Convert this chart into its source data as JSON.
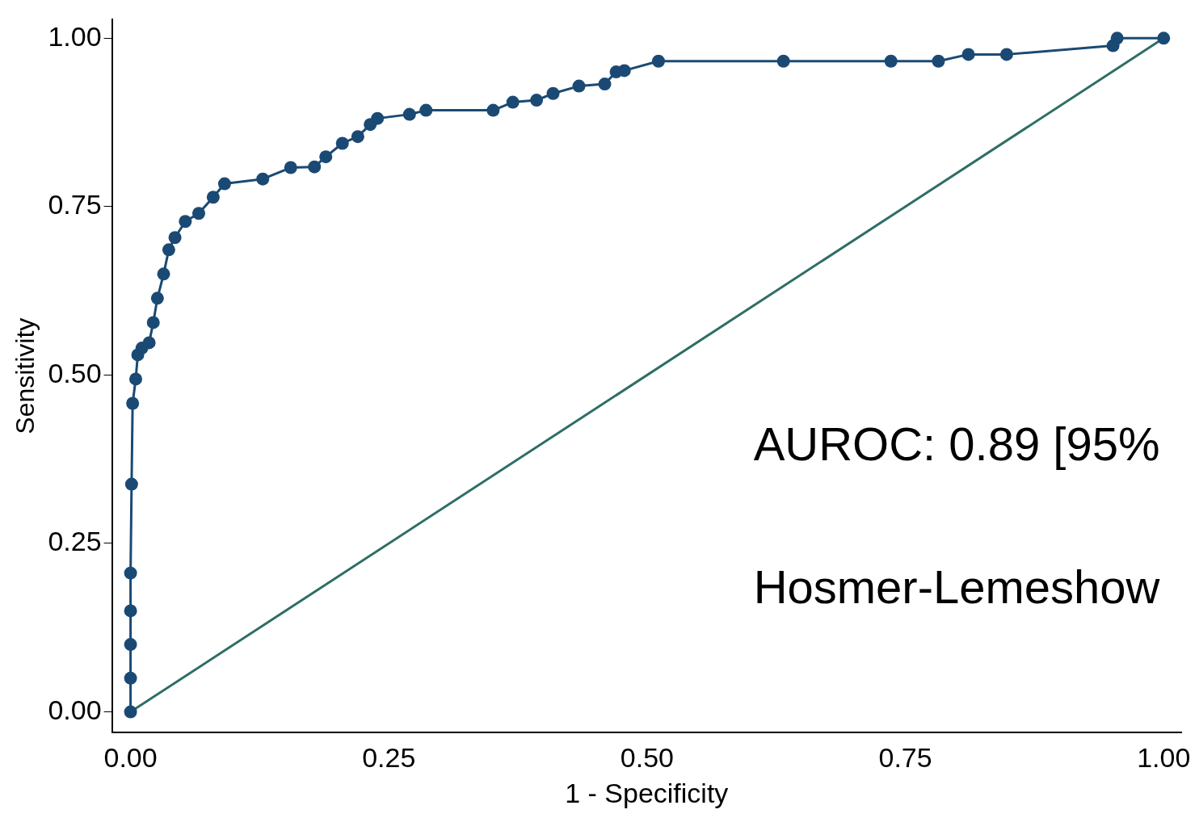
{
  "chart_data": {
    "type": "line",
    "xlabel": "1 - Specificity",
    "ylabel": "Sensitivity",
    "xlim": [
      -0.018,
      1.017
    ],
    "ylim": [
      -0.031,
      1.028
    ],
    "xticks": [
      {
        "value": 0,
        "label": "0.00"
      },
      {
        "value": 0.25,
        "label": "0.25"
      },
      {
        "value": 0.5,
        "label": "0.50"
      },
      {
        "value": 0.75,
        "label": "0.75"
      },
      {
        "value": 1,
        "label": "1.00"
      }
    ],
    "yticks": [
      {
        "value": 0,
        "label": "0.00"
      },
      {
        "value": 0.25,
        "label": "0.25"
      },
      {
        "value": 0.5,
        "label": "0.50"
      },
      {
        "value": 0.75,
        "label": "0.75"
      },
      {
        "value": 1,
        "label": "1.00"
      }
    ],
    "grid": false,
    "legend": false,
    "annotations": [
      "AUROC: 0.89 [95%",
      "Hosmer-Lemeshow"
    ],
    "series": [
      {
        "color": "#1a4a74",
        "marker": "circle",
        "x": [
          0,
          0,
          0,
          0,
          0,
          0.001,
          0.002,
          0.005,
          0.007,
          0.011,
          0.018,
          0.022,
          0.026,
          0.032,
          0.037,
          0.043,
          0.053,
          0.066,
          0.08,
          0.091,
          0.128,
          0.155,
          0.178,
          0.189,
          0.205,
          0.22,
          0.232,
          0.239,
          0.27,
          0.286,
          0.351,
          0.37,
          0.393,
          0.409,
          0.434,
          0.459,
          0.47,
          0.478,
          0.511,
          0.632,
          0.736,
          0.782,
          0.811,
          0.848,
          0.951,
          0.955,
          1
        ],
        "values": [
          0,
          0.05,
          0.1,
          0.15,
          0.206,
          0.338,
          0.458,
          0.494,
          0.53,
          0.54,
          0.548,
          0.578,
          0.614,
          0.65,
          0.686,
          0.704,
          0.728,
          0.74,
          0.764,
          0.784,
          0.791,
          0.808,
          0.809,
          0.824,
          0.844,
          0.854,
          0.872,
          0.881,
          0.887,
          0.893,
          0.893,
          0.905,
          0.908,
          0.918,
          0.929,
          0.932,
          0.95,
          0.952,
          0.966,
          0.966,
          0.966,
          0.966,
          0.976,
          0.976,
          0.989,
          1,
          1
        ]
      },
      {
        "color": "#2e6e65",
        "marker": "none",
        "x": [
          0,
          1
        ],
        "values": [
          0,
          1
        ]
      }
    ]
  }
}
